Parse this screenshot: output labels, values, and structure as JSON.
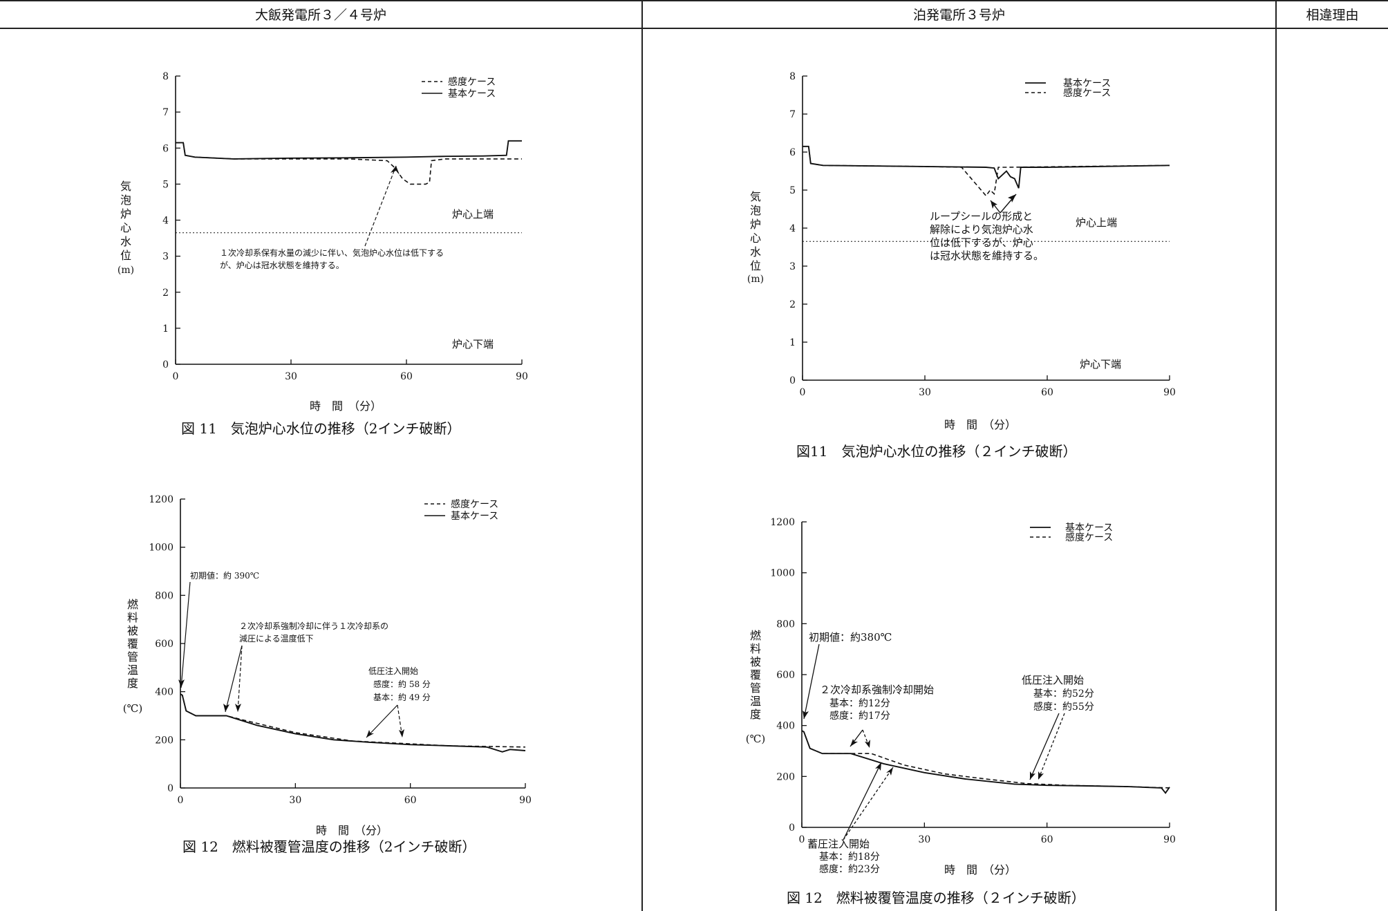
{
  "header": {
    "col_a": "大飯発電所３／４号炉",
    "col_b": "泊発電所３号炉",
    "col_c": "相違理由"
  },
  "left": {
    "level": {
      "ylabel_chars": [
        "気",
        "泡",
        "炉",
        "心",
        "水",
        "位"
      ],
      "yunit": "(m)",
      "xlabel": "時　間　（分）",
      "legend_dashed": "感度ケース",
      "legend_solid": "基本ケース",
      "core_top": "炉心上端",
      "core_bottom": "炉心下端",
      "note_line1": "１次冷却系保有水量の減少に伴い、気泡炉心水位は低下する",
      "note_line2": "が、炉心は冠水状態を維持する。",
      "caption": "図 11　気泡炉心水位の推移（2インチ破断）"
    },
    "temp": {
      "ylabel_chars": [
        "燃",
        "料",
        "被",
        "覆",
        "管",
        "温",
        "度"
      ],
      "yunit": "(℃)",
      "xlabel": "時　間　（分）",
      "legend_dashed": "感度ケース",
      "legend_solid": "基本ケース",
      "initial": "初期値：約 390℃",
      "note_line1": "２次冷却系強制冷却に伴う１次冷却系の",
      "note_line2": "減圧による温度低下",
      "lpi_title": "低圧注入開始",
      "lpi_sens": "感度：約 58 分",
      "lpi_base": "基本：約 49 分",
      "caption": "図 12　燃料被覆管温度の推移（2インチ破断）"
    }
  },
  "right": {
    "level": {
      "ylabel_chars": [
        "気",
        "泡",
        "炉",
        "心",
        "水",
        "位"
      ],
      "yunit": "(m)",
      "xlabel": "時　間　（分）",
      "legend_solid": "基本ケース",
      "legend_dashed": "感度ケース",
      "core_top": "炉心上端",
      "core_bottom": "炉心下端",
      "note_line1": "ループシールの形成と",
      "note_line2": "解除により気泡炉心水",
      "note_line3": "位は低下するが、炉心",
      "note_line4": "は冠水状態を維持する。",
      "caption": "図11　気泡炉心水位の推移（２インチ破断）"
    },
    "temp": {
      "ylabel_chars": [
        "燃",
        "料",
        "被",
        "覆",
        "管",
        "温",
        "度"
      ],
      "yunit": "(℃)",
      "xlabel": "時　間　（分）",
      "legend_solid": "基本ケース",
      "legend_dashed": "感度ケース",
      "initial": "初期値：約380℃",
      "cool_title": "２次冷却系強制冷却開始",
      "cool_base": "基本：約12分",
      "cool_sens": "感度：約17分",
      "lpi_title": "低圧注入開始",
      "lpi_base": "基本：約52分",
      "lpi_sens": "感度：約55分",
      "acc_title": "蓄圧注入開始",
      "acc_base": "基本：約18分",
      "acc_sens": "感度：約23分",
      "caption": "図 12　燃料被覆管温度の推移（２インチ破断）"
    }
  },
  "chart_data": [
    {
      "type": "line",
      "xlabel": "時　間　（分）",
      "ylabel": "気泡炉心水位 (m)",
      "xlim": [
        0,
        90
      ],
      "ylim": [
        0,
        8
      ],
      "xticks": [
        0,
        30,
        60,
        90
      ],
      "yticks": [
        0,
        1,
        2,
        3,
        4,
        5,
        6,
        7,
        8
      ],
      "reference_line": {
        "y": 3.65,
        "label": "炉心上端"
      },
      "series": [
        {
          "name": "感度ケース",
          "style": "dashed",
          "x": [
            0,
            2,
            2.5,
            5,
            15,
            30,
            45,
            55,
            57,
            59,
            61,
            63,
            65,
            66,
            66.5,
            70,
            80,
            90
          ],
          "y": [
            6.15,
            6.15,
            5.8,
            5.75,
            5.7,
            5.7,
            5.7,
            5.65,
            5.45,
            5.15,
            5.0,
            5.0,
            5.0,
            5.05,
            5.65,
            5.7,
            5.7,
            5.7
          ]
        },
        {
          "name": "基本ケース",
          "style": "solid",
          "x": [
            0,
            2,
            2.5,
            5,
            15,
            30,
            45,
            60,
            70,
            80,
            86,
            86.5,
            90
          ],
          "y": [
            6.15,
            6.15,
            5.8,
            5.75,
            5.7,
            5.72,
            5.73,
            5.75,
            5.77,
            5.78,
            5.8,
            6.2,
            6.2
          ]
        }
      ]
    },
    {
      "type": "line",
      "xlabel": "時　間　（分）",
      "ylabel": "燃料被覆管温度 (℃)",
      "xlim": [
        0,
        90
      ],
      "ylim": [
        0,
        1200
      ],
      "xticks": [
        0,
        30,
        60,
        90
      ],
      "yticks": [
        0,
        200,
        400,
        600,
        800,
        1000,
        1200
      ],
      "series": [
        {
          "name": "感度ケース",
          "style": "dashed",
          "x": [
            0,
            0.5,
            1.5,
            4,
            12,
            17,
            30,
            45,
            58,
            70,
            90
          ],
          "y": [
            390,
            385,
            320,
            300,
            300,
            280,
            230,
            195,
            185,
            175,
            170
          ]
        },
        {
          "name": "基本ケース",
          "style": "solid",
          "x": [
            0,
            0.5,
            1.5,
            4,
            12,
            20,
            30,
            40,
            49,
            60,
            70,
            80,
            84,
            86,
            90
          ],
          "y": [
            390,
            385,
            320,
            300,
            300,
            260,
            225,
            200,
            190,
            180,
            175,
            170,
            150,
            160,
            155
          ]
        }
      ]
    },
    {
      "type": "line",
      "xlabel": "時　間　（分）",
      "ylabel": "気泡炉心水位 (m)",
      "xlim": [
        0,
        90
      ],
      "ylim": [
        0,
        8
      ],
      "xticks": [
        0,
        30,
        60,
        90
      ],
      "yticks": [
        0,
        1,
        2,
        3,
        4,
        5,
        6,
        7,
        8
      ],
      "reference_line": {
        "y": 3.65,
        "label": "炉心上端"
      },
      "series": [
        {
          "name": "基本ケース",
          "style": "solid",
          "x": [
            0,
            1.5,
            2,
            5,
            30,
            45,
            47,
            48,
            50,
            51,
            52,
            53,
            53.5,
            60,
            90
          ],
          "y": [
            6.15,
            6.15,
            5.7,
            5.65,
            5.62,
            5.6,
            5.58,
            5.3,
            5.5,
            5.35,
            5.3,
            5.05,
            5.6,
            5.6,
            5.65
          ]
        },
        {
          "name": "感度ケース",
          "style": "dashed",
          "x": [
            0,
            1.5,
            2,
            5,
            30,
            39,
            41,
            43,
            45,
            46,
            47,
            48,
            50,
            90
          ],
          "y": [
            6.15,
            6.15,
            5.7,
            5.65,
            5.62,
            5.6,
            5.35,
            5.1,
            4.85,
            5.0,
            4.9,
            5.6,
            5.6,
            5.65
          ]
        }
      ]
    },
    {
      "type": "line",
      "xlabel": "時　間　（分）",
      "ylabel": "燃料被覆管温度 (℃)",
      "xlim": [
        0,
        90
      ],
      "ylim": [
        0,
        1200
      ],
      "xticks": [
        0,
        30,
        60,
        90
      ],
      "yticks": [
        0,
        200,
        400,
        600,
        800,
        1000,
        1200
      ],
      "series": [
        {
          "name": "基本ケース",
          "style": "solid",
          "x": [
            0,
            0.5,
            2,
            5,
            12,
            20,
            30,
            40,
            52,
            60,
            70,
            80,
            88,
            89,
            90
          ],
          "y": [
            380,
            375,
            310,
            290,
            290,
            250,
            215,
            190,
            170,
            165,
            163,
            160,
            155,
            135,
            158
          ]
        },
        {
          "name": "感度ケース",
          "style": "dashed",
          "x": [
            0,
            0.5,
            2,
            5,
            12,
            17,
            25,
            35,
            45,
            55,
            65,
            80,
            90
          ],
          "y": [
            380,
            375,
            310,
            290,
            290,
            290,
            245,
            210,
            190,
            172,
            165,
            160,
            155
          ]
        }
      ]
    }
  ]
}
